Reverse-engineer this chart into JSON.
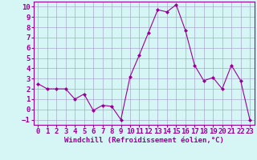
{
  "x": [
    0,
    1,
    2,
    3,
    4,
    5,
    6,
    7,
    8,
    9,
    10,
    11,
    12,
    13,
    14,
    15,
    16,
    17,
    18,
    19,
    20,
    21,
    22,
    23
  ],
  "y": [
    2.5,
    2.0,
    2.0,
    2.0,
    1.0,
    1.5,
    -0.1,
    0.4,
    0.3,
    -1.0,
    3.2,
    5.3,
    7.5,
    9.7,
    9.5,
    10.2,
    7.7,
    4.3,
    2.8,
    3.1,
    2.0,
    4.3,
    2.8,
    -1.0
  ],
  "line_color": "#990099",
  "marker": "D",
  "marker_size": 2.0,
  "bg_color": "#d6f5f5",
  "grid_color": "#aaaacc",
  "text_color": "#990099",
  "xlabel": "Windchill (Refroidissement éolien,°C)",
  "xlabel_fontsize": 6.5,
  "tick_fontsize": 6.5,
  "ylim": [
    -1.5,
    10.5
  ],
  "xlim": [
    -0.5,
    23.5
  ],
  "yticks": [
    -1,
    0,
    1,
    2,
    3,
    4,
    5,
    6,
    7,
    8,
    9,
    10
  ],
  "xticks": [
    0,
    1,
    2,
    3,
    4,
    5,
    6,
    7,
    8,
    9,
    10,
    11,
    12,
    13,
    14,
    15,
    16,
    17,
    18,
    19,
    20,
    21,
    22,
    23
  ]
}
